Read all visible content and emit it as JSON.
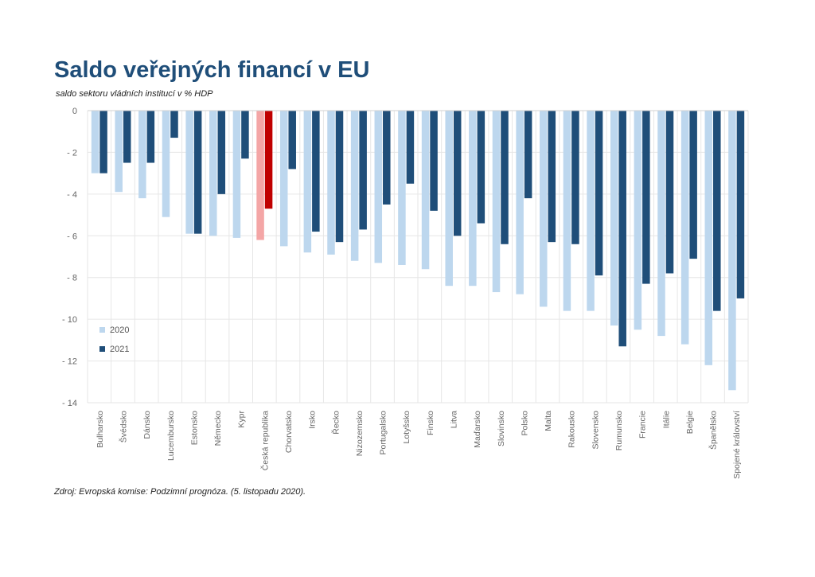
{
  "header": {
    "title": "Saldo veřejných financí v EU",
    "subtitle": "saldo sektoru vládních institucí v % HDP"
  },
  "footer": {
    "source": "Zdroj: Evropská komise: Podzimní prognóza. (5. listopadu 2020)."
  },
  "colors": {
    "series_2020": "#bdd7ee",
    "series_2021": "#1f4e79",
    "highlight_2020": "#f4a6a6",
    "highlight_2021": "#c00000",
    "grid": "#e6e6e6",
    "title": "#1f4e79"
  },
  "chart_data": {
    "type": "bar",
    "categories": [
      "Bulharsko",
      "Švédsko",
      "Dánsko",
      "Lucembursko",
      "Estonsko",
      "Německo",
      "Kypr",
      "Česká republika",
      "Chorvatsko",
      "Irsko",
      "Řecko",
      "Nizozemsko",
      "Portugalsko",
      "Lotyšsko",
      "Finsko",
      "Litva",
      "Maďarsko",
      "Slovinsko",
      "Polsko",
      "Malta",
      "Rakousko",
      "Slovensko",
      "Rumunsko",
      "Francie",
      "Itálie",
      "Belgie",
      "Španělsko",
      "Spojené království"
    ],
    "series": [
      {
        "name": "2020",
        "values": [
          -3.0,
          -3.9,
          -4.2,
          -5.1,
          -5.9,
          -6.0,
          -6.1,
          -6.2,
          -6.5,
          -6.8,
          -6.9,
          -7.2,
          -7.3,
          -7.4,
          -7.6,
          -8.4,
          -8.4,
          -8.7,
          -8.8,
          -9.4,
          -9.6,
          -9.6,
          -10.3,
          -10.5,
          -10.8,
          -11.2,
          -12.2,
          -13.4
        ]
      },
      {
        "name": "2021",
        "values": [
          -3.0,
          -2.5,
          -2.5,
          -1.3,
          -5.9,
          -4.0,
          -2.3,
          -4.7,
          -2.8,
          -5.8,
          -6.3,
          -5.7,
          -4.5,
          -3.5,
          -4.8,
          -6.0,
          -5.4,
          -6.4,
          -4.2,
          -6.3,
          -6.4,
          -7.9,
          -11.3,
          -8.3,
          -7.8,
          -7.1,
          -9.6,
          -9.0
        ]
      }
    ],
    "highlight_category": "Česká republika",
    "ylim": [
      -14,
      0
    ],
    "yticks": [
      0,
      -2,
      -4,
      -6,
      -8,
      -10,
      -12,
      -14
    ],
    "ytick_labels": [
      "0",
      "- 2",
      "- 4",
      "- 6",
      "- 8",
      "- 10",
      "- 12",
      "- 14"
    ],
    "grid": true,
    "legend_position": "bottom-left"
  }
}
